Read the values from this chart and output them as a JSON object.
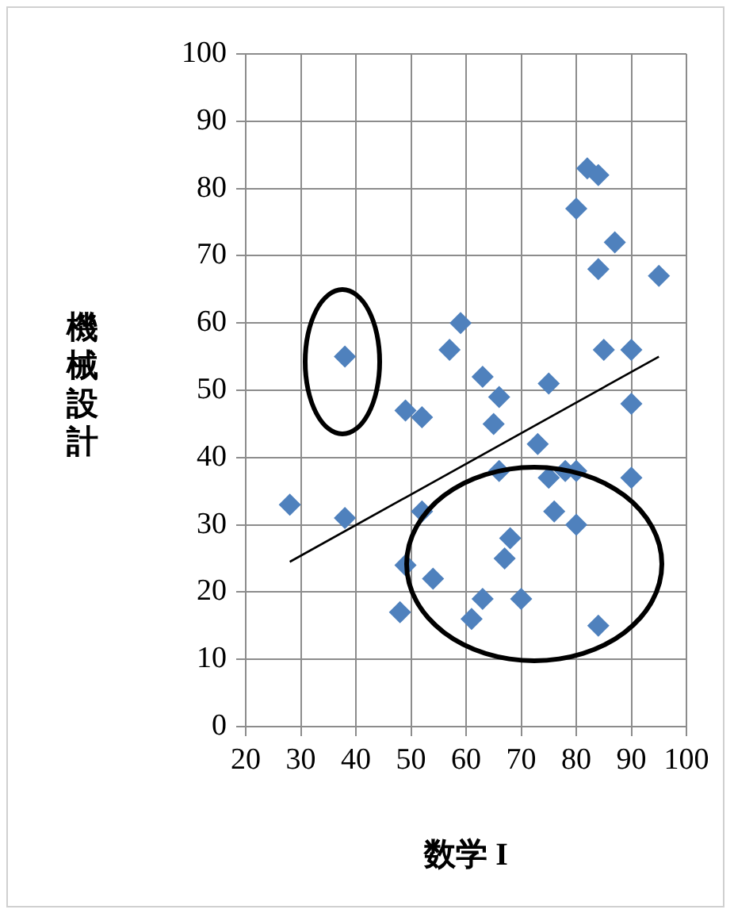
{
  "chart_data": {
    "type": "scatter",
    "xlabel": "数学 I",
    "ylabel": "機械設計",
    "xlim": [
      20,
      100
    ],
    "xticks": [
      20,
      30,
      40,
      50,
      60,
      70,
      80,
      90,
      100
    ],
    "ylim": [
      0,
      100
    ],
    "yticks": [
      0,
      10,
      20,
      30,
      40,
      50,
      60,
      70,
      80,
      90,
      100
    ],
    "grid": true,
    "legend": false,
    "marker": "diamond",
    "series": [
      {
        "color": "#4f81bd",
        "x": [
          28,
          38,
          49,
          52,
          52,
          49,
          54,
          48,
          61,
          63,
          70,
          67,
          68,
          66,
          65,
          66,
          63,
          75,
          73,
          75,
          76,
          80,
          78,
          80,
          84,
          90,
          90,
          82,
          84,
          80,
          87,
          84,
          95,
          59,
          57,
          85,
          90,
          38
        ],
        "values": [
          33,
          31,
          47,
          46,
          32,
          24,
          22,
          17,
          16,
          19,
          19,
          25,
          28,
          38,
          45,
          49,
          52,
          51,
          42,
          37,
          32,
          30,
          38,
          38,
          15,
          37,
          48,
          83,
          82,
          77,
          72,
          68,
          67,
          60,
          56,
          56,
          56,
          55
        ]
      },
      {
        "type": "line",
        "color": "#000000",
        "marker": "none",
        "x": [
          28,
          95
        ],
        "values": [
          24.5,
          55
        ]
      }
    ]
  }
}
